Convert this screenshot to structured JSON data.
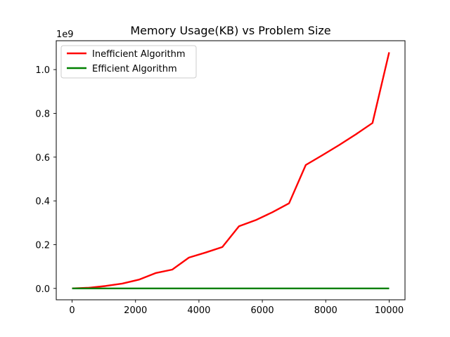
{
  "chart_data": {
    "type": "line",
    "title": "Memory Usage(KB) vs Problem Size",
    "xlabel": "",
    "ylabel": "",
    "y_offset_label": "1e9",
    "y_scale": 1000000000,
    "xlim": [
      -500,
      10500
    ],
    "ylim": [
      -52000000,
      1132000000
    ],
    "x_ticks": [
      0,
      2000,
      4000,
      6000,
      8000,
      10000
    ],
    "x_tick_labels": [
      "0",
      "2000",
      "4000",
      "6000",
      "8000",
      "10000"
    ],
    "y_ticks": [
      0,
      200000000,
      400000000,
      600000000,
      800000000,
      1000000000
    ],
    "y_tick_labels": [
      "0.0",
      "0.2",
      "0.4",
      "0.6",
      "0.8",
      "1.0"
    ],
    "legend_position": "upper-left",
    "grid": false,
    "series": [
      {
        "name": "Inefficient Algorithm",
        "color": "#ff0000",
        "x": [
          1,
          527,
          1053,
          1580,
          2106,
          2633,
          3159,
          3685,
          4212,
          4738,
          5264,
          5791,
          6317,
          6843,
          7370,
          7896,
          8422,
          8949,
          9475,
          10000
        ],
        "y": [
          0,
          3000000,
          11000000,
          22000000,
          40000000,
          70000000,
          86000000,
          141000000,
          164000000,
          189000000,
          284000000,
          312000000,
          348000000,
          389000000,
          564000000,
          609000000,
          655000000,
          704000000,
          756000000,
          1079000000
        ]
      },
      {
        "name": "Efficient Algorithm",
        "color": "#008000",
        "x": [
          1,
          527,
          1053,
          1580,
          2106,
          2633,
          3159,
          3685,
          4212,
          4738,
          5264,
          5791,
          6317,
          6843,
          7370,
          7896,
          8422,
          8949,
          9475,
          10000
        ],
        "y": [
          0,
          0,
          0,
          0,
          0,
          0,
          0,
          0,
          0,
          0,
          0,
          0,
          0,
          0,
          0,
          0,
          0,
          0,
          0,
          0
        ]
      }
    ]
  }
}
